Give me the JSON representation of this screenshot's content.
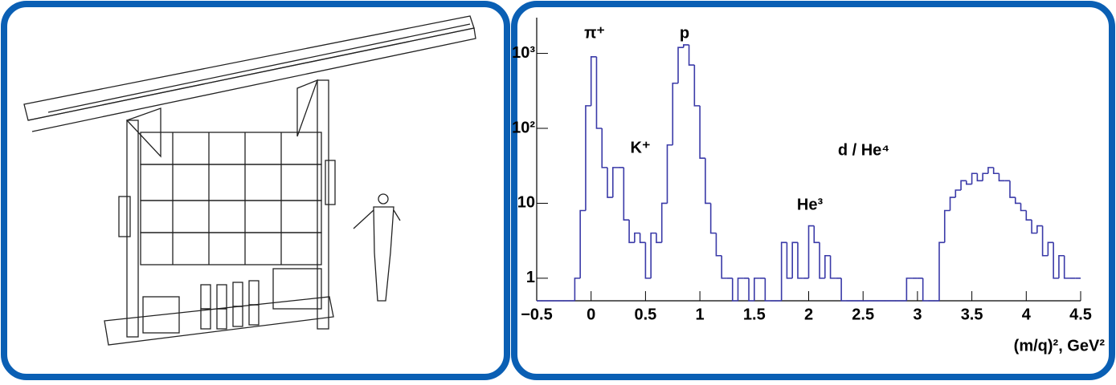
{
  "chart_data": {
    "type": "histogram",
    "annotations": [
      "π⁺",
      "p",
      "K⁺",
      "He³",
      "d / He⁴"
    ],
    "x_label": "(m/q)², GeV²",
    "bins": [
      -0.5,
      -0.45,
      -0.4,
      -0.35,
      -0.3,
      -0.25,
      -0.2,
      -0.15,
      -0.1,
      -0.05,
      0,
      0.05,
      0.1,
      0.15,
      0.2,
      0.25,
      0.3,
      0.35,
      0.4,
      0.45,
      0.5,
      0.55,
      0.6,
      0.65,
      0.7,
      0.75,
      0.8,
      0.85,
      0.9,
      0.95,
      1,
      1.05,
      1.1,
      1.15,
      1.2,
      1.25,
      1.3,
      1.35,
      1.4,
      1.45,
      1.5,
      1.55,
      1.6,
      1.65,
      1.7,
      1.75,
      1.8,
      1.85,
      1.9,
      1.95,
      2,
      2.05,
      2.1,
      2.15,
      2.2,
      2.25,
      2.3,
      2.35,
      2.4,
      2.45,
      2.5,
      2.55,
      2.6,
      2.65,
      2.7,
      2.75,
      2.8,
      2.85,
      2.9,
      2.95,
      3,
      3.05,
      3.1,
      3.15,
      3.2,
      3.25,
      3.3,
      3.35,
      3.4,
      3.45,
      3.5,
      3.55,
      3.6,
      3.65,
      3.7,
      3.75,
      3.8,
      3.85,
      3.9,
      3.95,
      4,
      4.05,
      4.1,
      4.15,
      4.2,
      4.25,
      4.3,
      4.35,
      4.4,
      4.45,
      4.5
    ],
    "values": [
      0,
      0,
      0,
      0,
      0,
      0,
      0,
      1,
      8,
      200,
      900,
      100,
      30,
      12,
      30,
      30,
      6,
      3,
      4,
      3,
      1,
      4,
      3,
      10,
      60,
      400,
      1200,
      1300,
      700,
      200,
      40,
      10,
      4,
      2,
      1,
      1,
      0,
      1,
      1,
      0,
      1,
      1,
      0,
      0,
      0,
      3,
      1,
      3,
      1,
      1,
      5,
      3,
      1,
      2,
      1,
      1,
      0,
      0,
      0,
      0,
      0,
      0,
      0,
      0,
      0,
      0,
      0,
      0,
      1,
      1,
      1,
      0,
      0,
      0,
      3,
      8,
      12,
      15,
      20,
      18,
      25,
      20,
      25,
      30,
      25,
      20,
      20,
      12,
      10,
      8,
      6,
      4,
      5,
      2,
      3,
      1,
      2,
      1,
      1,
      1
    ],
    "color": "#3a3aa8",
    "log_y": true,
    "xlim": [
      -0.5,
      4.5
    ],
    "ylim": [
      0.5,
      3000
    ],
    "xticks": [
      {
        "value": -0.5,
        "label": "−0.5"
      },
      0,
      0.5,
      1,
      1.5,
      2,
      2.5,
      3,
      3.5,
      4,
      4.5
    ],
    "yticks": [
      1,
      10,
      {
        "value": 100,
        "label": "10²"
      },
      {
        "value": 1000,
        "label": "10³"
      }
    ]
  }
}
